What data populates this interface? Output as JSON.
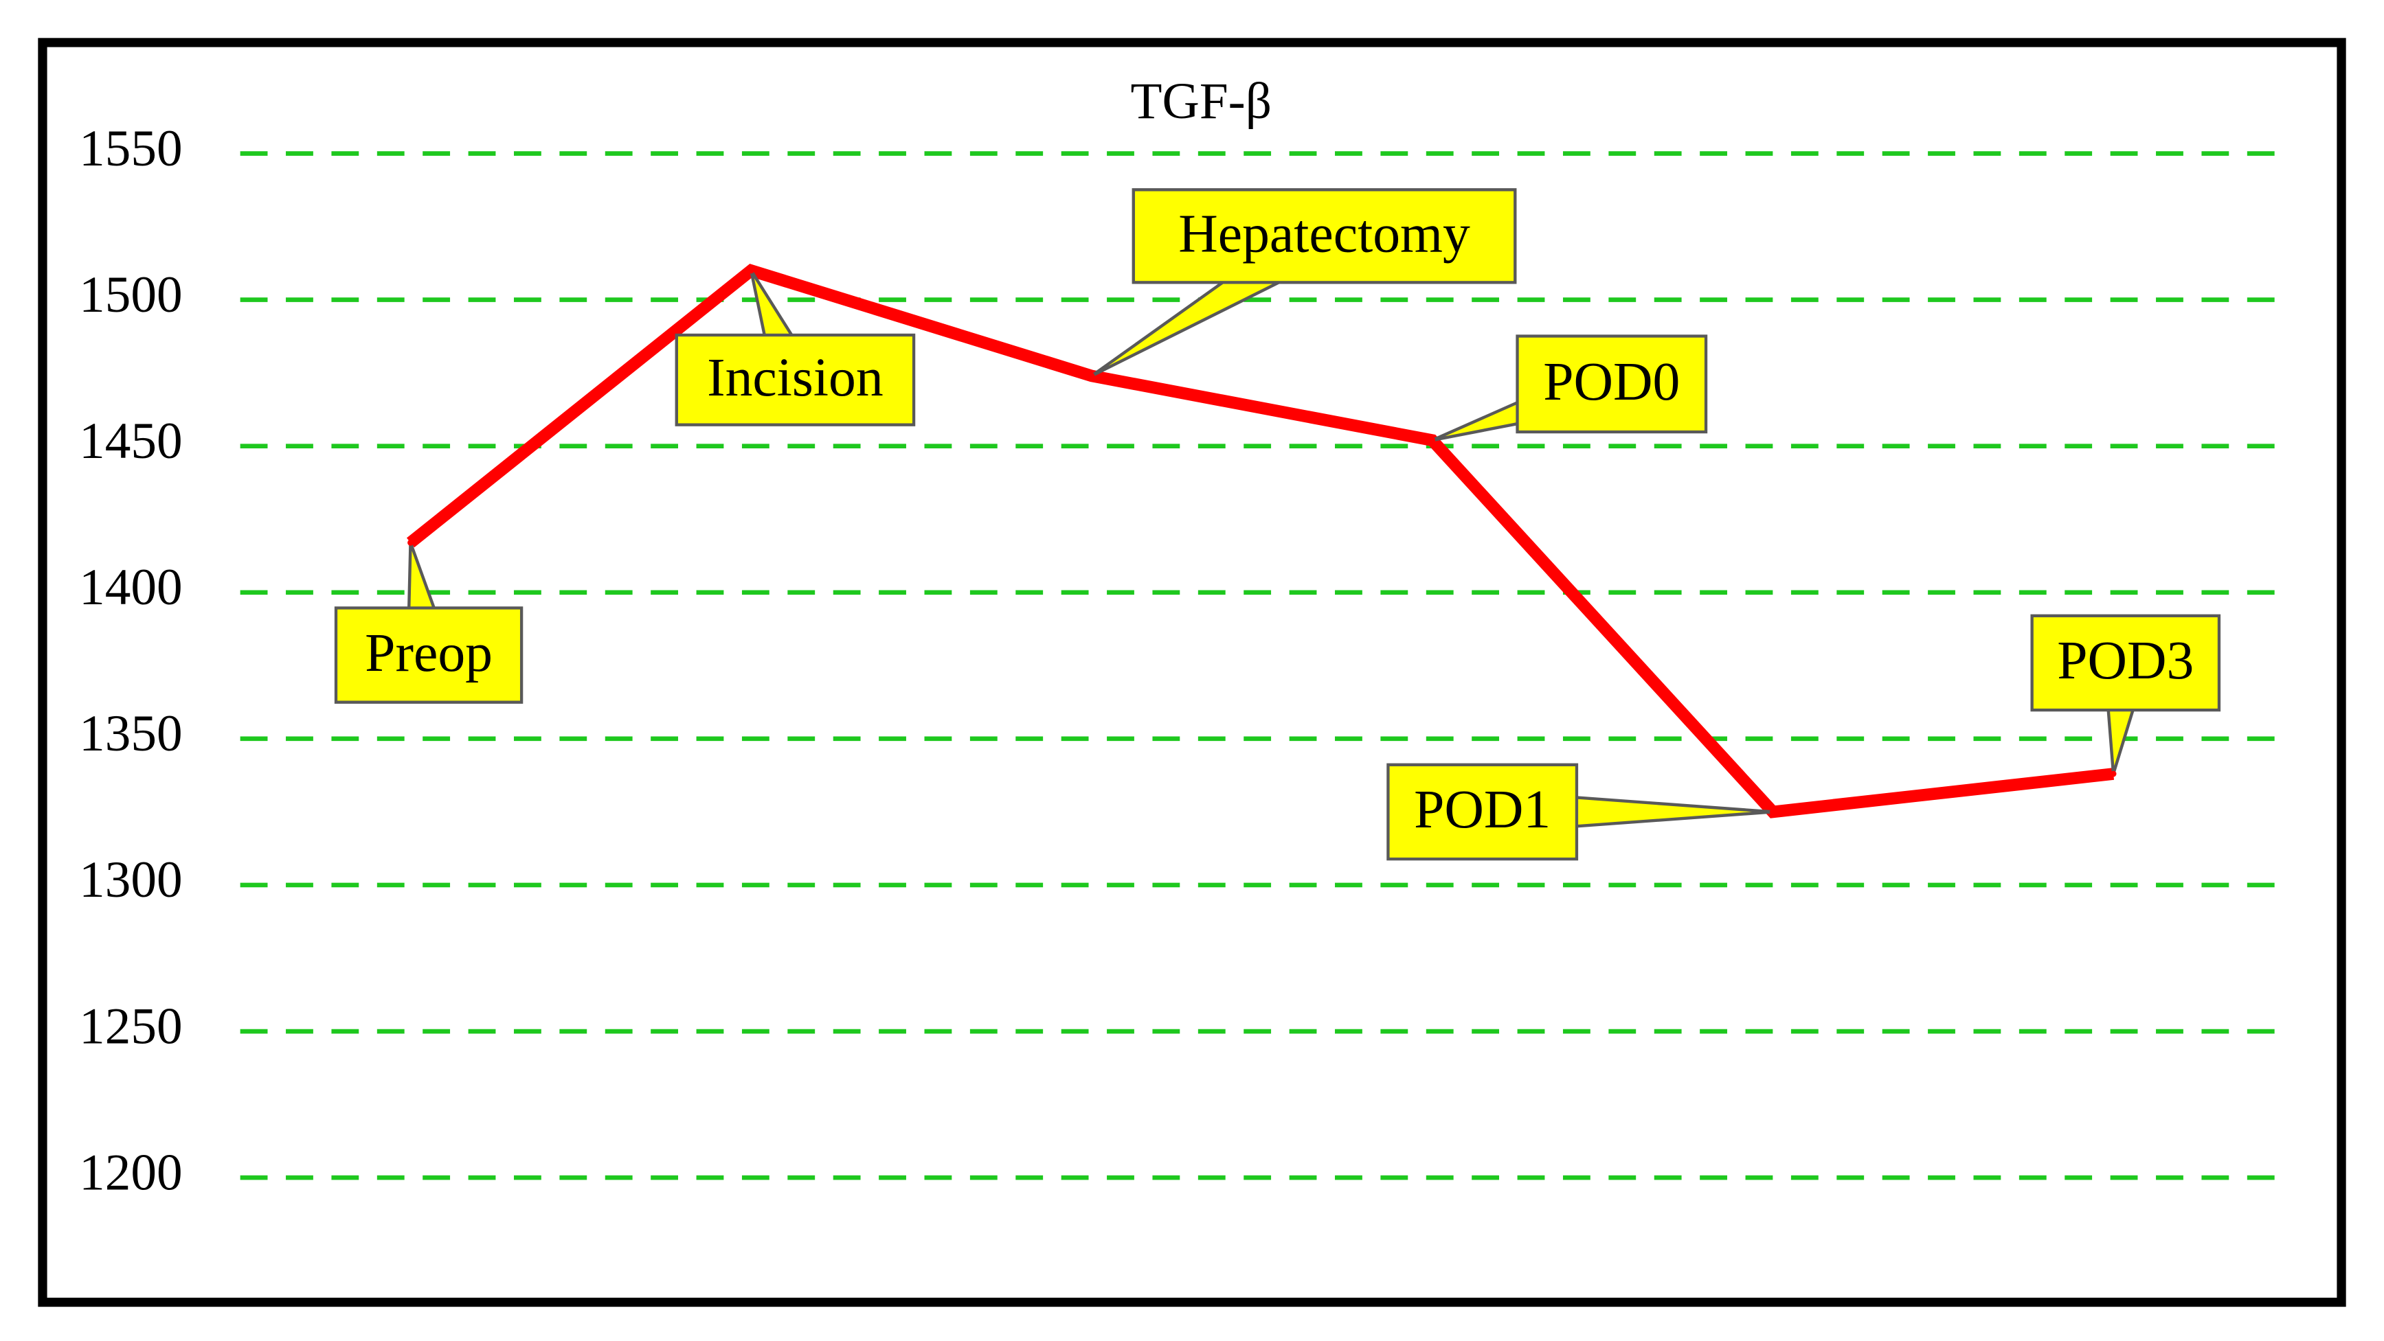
{
  "chart_data": {
    "type": "line",
    "title": "TGF-β",
    "categories": [
      "Preop",
      "Incision",
      "Hepatectomy",
      "POD0",
      "POD1",
      "POD3"
    ],
    "values": [
      1417,
      1510,
      1474,
      1452,
      1325,
      1338
    ],
    "color": "#ff0000",
    "ylim": [
      1200,
      1550
    ],
    "yticks": [
      1200,
      1250,
      1300,
      1350,
      1400,
      1450,
      1500,
      1550
    ],
    "grid": true,
    "grid_color": "#1ec81e",
    "label_color": "#ffff00"
  }
}
